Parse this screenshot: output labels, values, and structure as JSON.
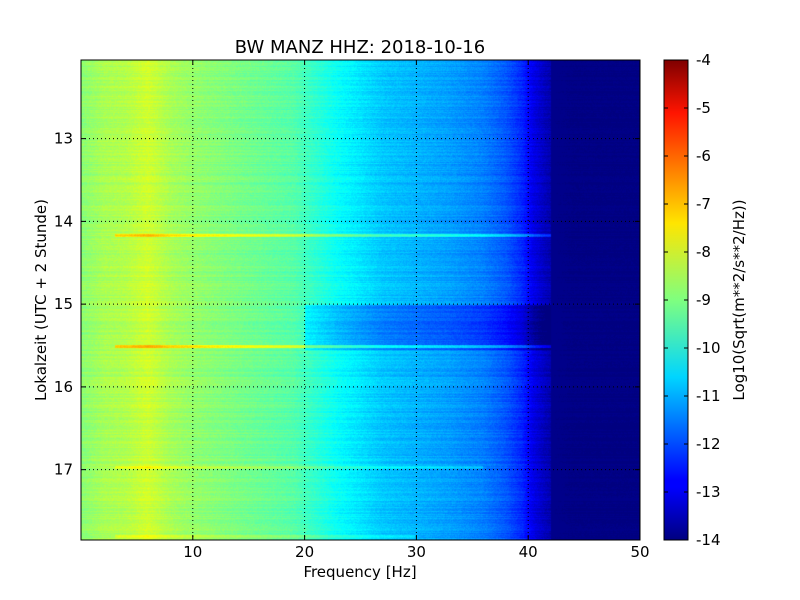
{
  "chart_data": {
    "type": "heatmap",
    "title": "BW MANZ HHZ: 2018-10-16",
    "xlabel": "Frequency [Hz]",
    "ylabel": "Lokalzeit (UTC + 2 Stunde)",
    "xlim": [
      0,
      50
    ],
    "ylim": [
      12.05,
      17.85
    ],
    "y_inverted": true,
    "x_ticks": [
      "10",
      "20",
      "30",
      "40",
      "50"
    ],
    "y_ticks": [
      "13",
      "14",
      "15",
      "16",
      "17"
    ],
    "grid": true,
    "colormap": "jet",
    "colorbar": {
      "label": "Log10(Sqrt(m**2/s**2/Hz))",
      "range": [
        -14,
        -4
      ],
      "ticks": [
        "-4",
        "-5",
        "-6",
        "-7",
        "-8",
        "-9",
        "-10",
        "-11",
        "-12",
        "-13",
        "-14"
      ]
    },
    "spectrum_profile": {
      "frequency_hz": [
        0,
        2,
        4,
        6,
        8,
        10,
        13,
        16,
        19,
        21,
        23,
        25,
        27,
        30,
        33,
        36,
        38,
        39.5,
        40.5,
        41.5,
        42.5,
        44,
        50
      ],
      "log_amplitude": [
        -8.9,
        -8.6,
        -8.5,
        -8.2,
        -8.6,
        -8.8,
        -9.0,
        -9.2,
        -9.4,
        -9.8,
        -10.2,
        -10.5,
        -10.8,
        -11.0,
        -11.2,
        -11.5,
        -11.9,
        -12.4,
        -13.0,
        -13.4,
        -13.7,
        -13.95,
        -14.0
      ]
    },
    "horizontal_lines": [
      {
        "time": 14.17,
        "offset": 1.1,
        "fmax": 42
      },
      {
        "time": 15.5,
        "offset": 1.3,
        "fmax": 43
      },
      {
        "time": 16.97,
        "offset": 0.5,
        "fmax": 36
      },
      {
        "time": 17.8,
        "offset": 0.5,
        "fmax": 30
      }
    ],
    "quiet_bands": [
      {
        "from": 15.0,
        "to": 15.55,
        "offset": -0.7
      }
    ]
  }
}
